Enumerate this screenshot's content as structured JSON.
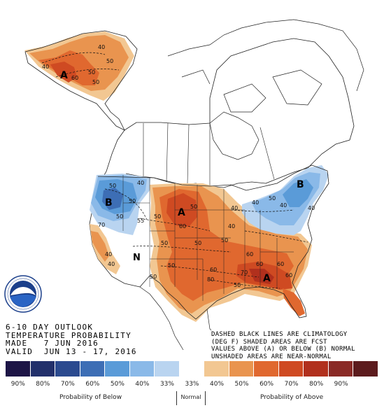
{
  "title_lines": {
    "line1": "6-10 DAY OUTLOOK",
    "line2": "TEMPERATURE PROBABILITY",
    "line3": "MADE   7 JUN 2016",
    "line4": "VALID  JUN 13 - 17, 2016"
  },
  "notes": {
    "line1": "DASHED BLACK LINES ARE CLIMATOLOGY",
    "line2": "(DEG F) SHADED AREAS ARE FCST",
    "line3": "VALUES ABOVE (A) OR BELOW (B) NORMAL",
    "line4": "UNSHADED AREAS ARE NEAR-NORMAL"
  },
  "logo_icon": "noaa-logo",
  "legend": {
    "swatches": [
      {
        "color": "#1d1546",
        "label": "90%"
      },
      {
        "color": "#22306b",
        "label": "80%"
      },
      {
        "color": "#2b4a8f",
        "label": "70%"
      },
      {
        "color": "#3d6eb5",
        "label": "60%"
      },
      {
        "color": "#5a9bd8",
        "label": "50%"
      },
      {
        "color": "#8ab9e8",
        "label": "40%"
      },
      {
        "color": "#b9d4f0",
        "label": "33%"
      },
      {
        "color": "#ffffff",
        "label": "33%"
      },
      {
        "color": "#f2c792",
        "label": "40%"
      },
      {
        "color": "#e9944f",
        "label": "50%"
      },
      {
        "color": "#e0682f",
        "label": "60%"
      },
      {
        "color": "#cf4a22",
        "label": "70%"
      },
      {
        "color": "#b1301d",
        "label": "80%"
      },
      {
        "color": "#8a2a26",
        "label": "90%"
      },
      {
        "color": "#5c1b1d",
        "label": ""
      }
    ],
    "below_caption": "Probability of Below",
    "normal_caption": "Normal",
    "above_caption": "Probability of Above"
  },
  "map_labels": {
    "alaska": {
      "letter": "A",
      "contours": [
        "60",
        "50",
        "40",
        "50",
        "40",
        "50"
      ]
    },
    "northwest": {
      "letter": "B",
      "contours": [
        "50",
        "50",
        "40",
        "50",
        "70",
        "55",
        "50"
      ]
    },
    "plains": {
      "letter": "A",
      "contours": [
        "60",
        "50",
        "40",
        "50",
        "50"
      ]
    },
    "southwest": {
      "letter": "N",
      "contours": [
        "40",
        "40",
        "50",
        "50",
        "50"
      ]
    },
    "southern": {
      "contours": [
        "60",
        "60",
        "70",
        "60",
        "80"
      ]
    },
    "southeast": {
      "letter": "A",
      "contours": [
        "60",
        "60",
        "50"
      ]
    },
    "northeast": {
      "letter": "B",
      "contours": [
        "40",
        "40"
      ]
    },
    "canada": {
      "contours": [
        "40",
        "40",
        "50"
      ]
    }
  },
  "colors": {
    "above_40": "#f2c792",
    "above_50": "#e9944f",
    "above_60": "#e0682f",
    "above_70": "#cf4a22",
    "below_40": "#8ab9e8",
    "below_50": "#5a9bd8",
    "below_33": "#b9d4f0"
  }
}
